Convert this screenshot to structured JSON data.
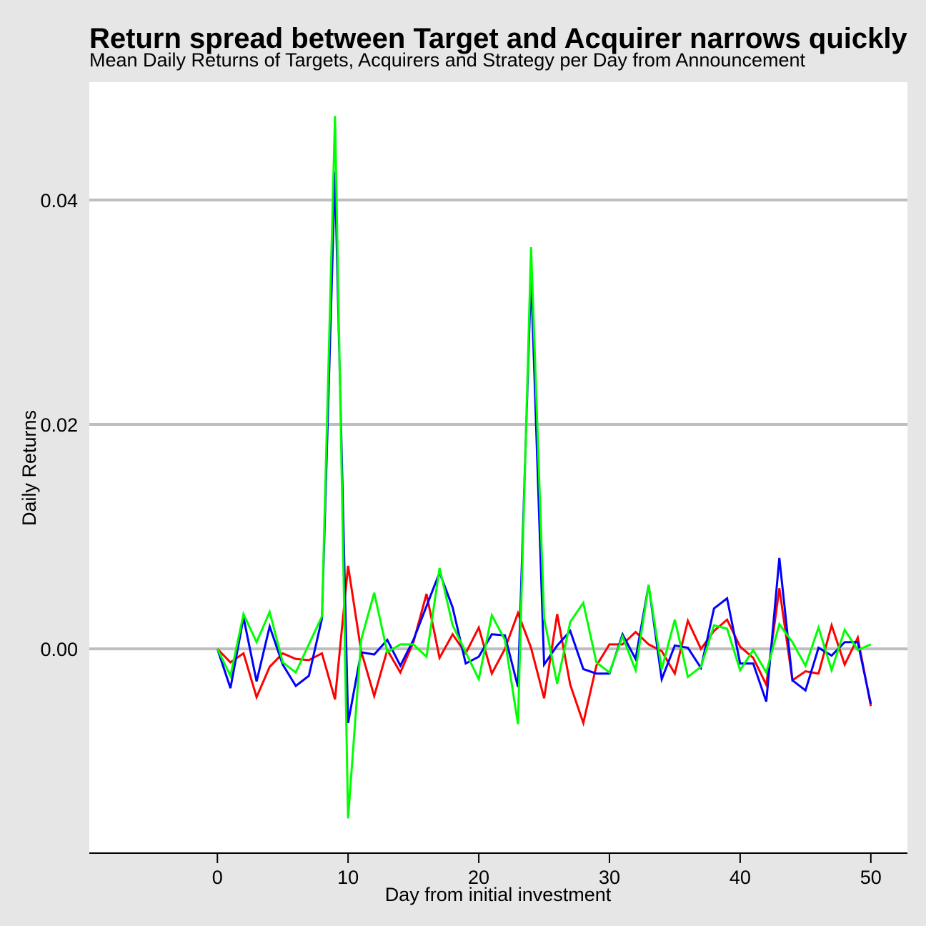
{
  "chart_data": {
    "type": "line",
    "title": "Return spread between Target and Acquirer narrows quickly",
    "subtitle": "Mean Daily Returns of Targets, Acquirers and Strategy per Day from Announcement",
    "xlabel": "Day from initial investment",
    "ylabel": "Daily Returns",
    "xlim": [
      -9.8,
      52.8
    ],
    "ylim": [
      -0.0182,
      0.0505
    ],
    "x_ticks": [
      0,
      10,
      20,
      30,
      40,
      50
    ],
    "x_tick_labels": [
      "0",
      "10",
      "20",
      "30",
      "40",
      "50"
    ],
    "y_ticks": [
      0.0,
      0.02,
      0.04
    ],
    "y_tick_labels": [
      "0.00",
      "0.02",
      "0.04"
    ],
    "grid": "horizontal major",
    "x": [
      0,
      1,
      2,
      3,
      4,
      5,
      6,
      7,
      8,
      9,
      10,
      11,
      12,
      13,
      14,
      15,
      16,
      17,
      18,
      19,
      20,
      21,
      22,
      23,
      24,
      25,
      26,
      27,
      28,
      29,
      30,
      31,
      32,
      33,
      34,
      35,
      36,
      37,
      38,
      39,
      40,
      41,
      42,
      43,
      44,
      45,
      46,
      47,
      48,
      49,
      50
    ],
    "series": [
      {
        "color": "#ff0000",
        "values": [
          0.0,
          -0.0012,
          -0.0004,
          -0.0043,
          -0.0016,
          -0.0004,
          -0.0009,
          -0.001,
          -0.0004,
          -0.0045,
          0.0074,
          -0.0002,
          -0.0042,
          -0.0001,
          -0.0021,
          0.0006,
          0.0049,
          -0.0008,
          0.0013,
          -0.0004,
          0.0019,
          -0.0022,
          0.0,
          0.0032,
          0.0001,
          -0.0044,
          0.0031,
          -0.0032,
          -0.0066,
          -0.0015,
          0.0004,
          0.0004,
          0.0015,
          0.0004,
          -0.0002,
          -0.0022,
          0.0025,
          0.0,
          0.0016,
          0.0026,
          0.0002,
          -0.0008,
          -0.0032,
          0.0054,
          -0.0028,
          -0.002,
          -0.0022,
          0.0021,
          -0.0014,
          0.001,
          -0.0051
        ]
      },
      {
        "color": "#0000ff",
        "values": [
          0.0,
          -0.0035,
          0.0028,
          -0.0029,
          0.002,
          -0.0014,
          -0.0033,
          -0.0024,
          0.0027,
          0.0425,
          -0.0066,
          -0.0003,
          -0.0005,
          0.0008,
          -0.0015,
          0.0008,
          0.0038,
          0.0068,
          0.0037,
          -0.0013,
          -0.0007,
          0.0013,
          0.0012,
          -0.0034,
          0.0334,
          -0.0014,
          0.0003,
          0.0016,
          -0.0018,
          -0.0022,
          -0.0022,
          0.0013,
          -0.0009,
          0.0057,
          -0.0027,
          0.0003,
          0.0001,
          -0.0017,
          0.0036,
          0.0045,
          -0.0013,
          -0.0013,
          -0.0047,
          0.0081,
          -0.0028,
          -0.0037,
          0.0001,
          -0.0006,
          0.0006,
          0.0006,
          -0.0049
        ]
      },
      {
        "color": "#00ff00",
        "values": [
          0.0,
          -0.0024,
          0.0031,
          0.0006,
          0.0033,
          -0.0012,
          -0.0021,
          0.0004,
          0.0029,
          0.0475,
          -0.0151,
          0.0008,
          0.005,
          -0.0003,
          0.0004,
          0.0004,
          -0.0007,
          0.0072,
          0.0021,
          -0.0003,
          -0.0027,
          0.003,
          0.0008,
          -0.0067,
          0.0358,
          0.0027,
          -0.0031,
          0.0024,
          0.0041,
          -0.0012,
          -0.0021,
          0.0011,
          -0.0019,
          0.0057,
          -0.0018,
          0.0026,
          -0.0025,
          -0.0016,
          0.0021,
          0.0018,
          -0.0019,
          -0.0001,
          -0.0021,
          0.0022,
          0.0006,
          -0.0015,
          0.0019,
          -0.0019,
          0.0017,
          -0.0001,
          0.0004
        ]
      }
    ]
  }
}
